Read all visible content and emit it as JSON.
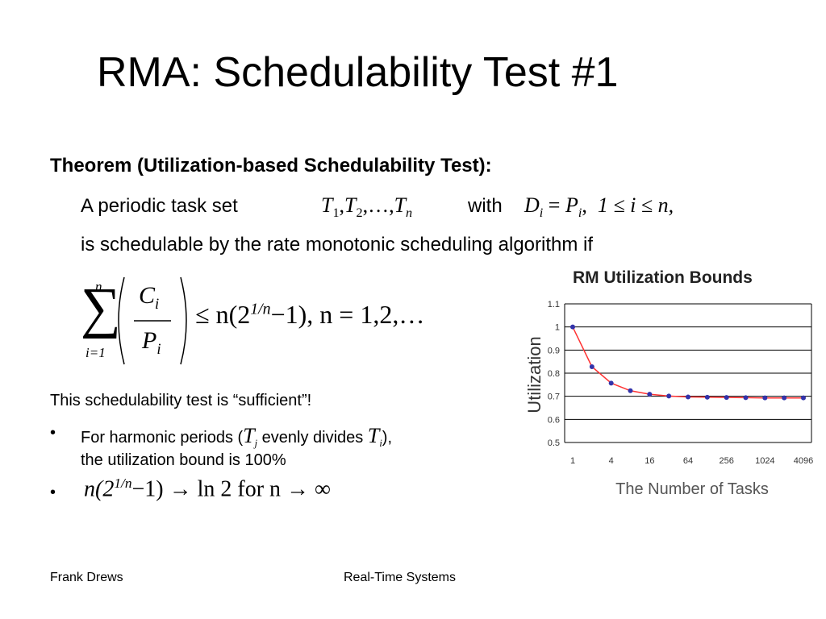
{
  "title": "RMA: Schedulability Test #1",
  "theorem_heading": "Theorem (Utilization-based Schedulability Test):",
  "line1": {
    "prefix": "A periodic task set",
    "task_set": {
      "T": "T",
      "s1": "1",
      "s2": "2",
      "dots": ",…,",
      "sn": "n"
    },
    "with": "with",
    "condition": {
      "D": "D",
      "i": "i",
      "eq": "=",
      "P": "P",
      "range": "1 ≤ i ≤ n,"
    }
  },
  "line2": "is schedulable by the rate monotonic scheduling algorithm if",
  "formula": {
    "sum_top": "n",
    "sum_bottom": "i=1",
    "num": "C",
    "den": "P",
    "sub": "i",
    "rhs": "≤ n(2",
    "exp": "1/n",
    "rhs_tail": "−1),  n = 1,2,…"
  },
  "sufficient": "This schedulability test is “sufficient”!",
  "bullets": [
    {
      "marker": "•",
      "pre": "For harmonic periods (",
      "Tj": "T",
      "j": "j",
      "mid": " evenly divides ",
      "Ti": "T",
      "i": "i",
      "post": "),",
      "line2": "the utilization bound is 100%"
    },
    {
      "marker": "•",
      "math_pre": "n(2",
      "exp": "1/n",
      "math_post": "−1) → ln 2  for  n → ∞"
    }
  ],
  "chart_data": {
    "type": "line",
    "title": "RM Utilization Bounds",
    "xlabel": "The Number of Tasks",
    "ylabel": "Utilization",
    "x_scale": "log2",
    "x_ticks": [
      "1",
      "4",
      "16",
      "64",
      "256",
      "1024",
      "4096"
    ],
    "y_ticks": [
      "1.1",
      "1",
      "0.9",
      "0.8",
      "0.7",
      "0.6",
      "0.5"
    ],
    "ylim": [
      0.5,
      1.1
    ],
    "grid": "horizontal",
    "x": [
      1,
      2,
      4,
      8,
      16,
      32,
      64,
      128,
      256,
      512,
      1024,
      2048,
      4096
    ],
    "y": [
      1.0,
      0.828,
      0.757,
      0.724,
      0.709,
      0.701,
      0.697,
      0.696,
      0.695,
      0.694,
      0.693,
      0.693,
      0.693
    ],
    "colors": {
      "line": "#ff3333",
      "marker": "#3333aa",
      "grid": "#000000"
    }
  },
  "footer": {
    "left": "Frank Drews",
    "center": "Real-Time Systems"
  }
}
